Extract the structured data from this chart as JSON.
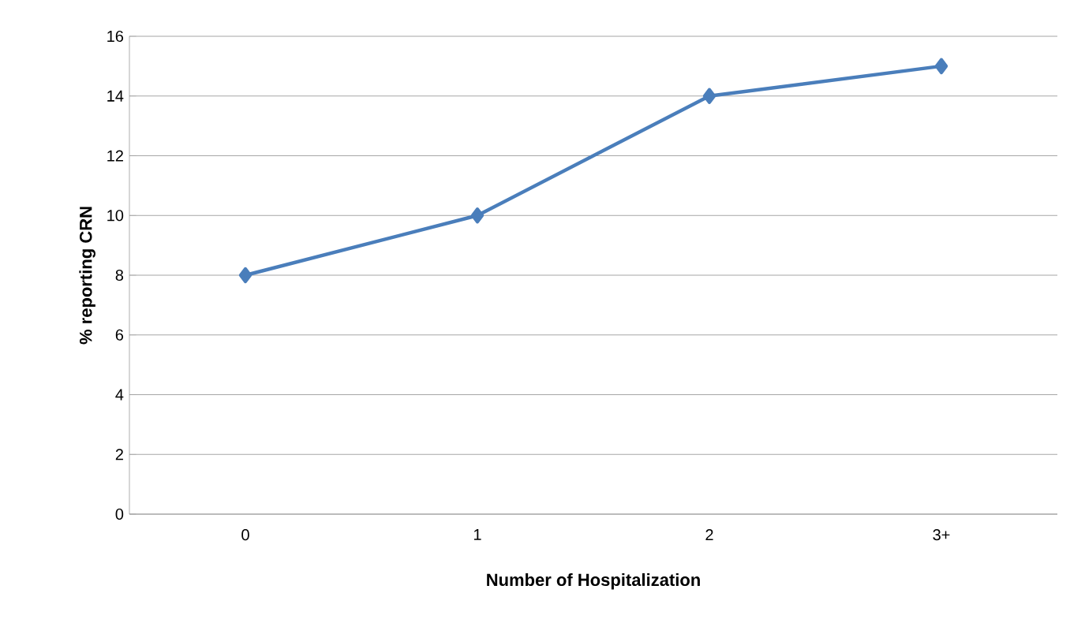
{
  "chart_data": {
    "type": "line",
    "xlabel": "Number of Hospitalization",
    "ylabel": "% reporting CRN",
    "categories": [
      "0",
      "1",
      "2",
      "3+"
    ],
    "series": [
      {
        "color": "#4a7ebb",
        "values": [
          8,
          10,
          14,
          15
        ]
      }
    ],
    "ylim": [
      0,
      16
    ],
    "yticks": [
      0,
      2,
      4,
      6,
      8,
      10,
      12,
      14,
      16
    ],
    "grid": "y",
    "marker": "diamond",
    "line_style": "solid"
  }
}
